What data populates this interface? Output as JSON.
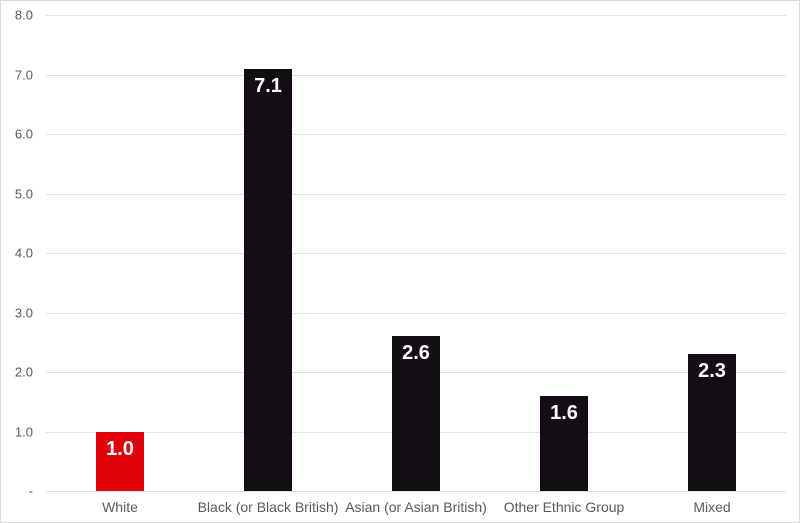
{
  "chart_data": {
    "type": "bar",
    "title": "",
    "xlabel": "",
    "ylabel": "",
    "categories": [
      "White",
      "Black (or Black British)",
      "Asian (or Asian British)",
      "Other Ethnic Group",
      "Mixed"
    ],
    "values": [
      1.0,
      7.1,
      2.6,
      1.6,
      2.3
    ],
    "value_labels": [
      "1.0",
      "7.1",
      "2.6",
      "1.6",
      "2.3"
    ],
    "bar_colors": [
      "#e00009",
      "#140d16",
      "#140d16",
      "#140d16",
      "#140d16"
    ],
    "highlight_color": "#e00009",
    "default_bar_color": "#140d16",
    "ylim": [
      0,
      8
    ],
    "y_ticks": [
      {
        "value": 8,
        "label": "8.0"
      },
      {
        "value": 7,
        "label": "7.0"
      },
      {
        "value": 6,
        "label": "6.0"
      },
      {
        "value": 5,
        "label": "5.0"
      },
      {
        "value": 4,
        "label": "4.0"
      },
      {
        "value": 3,
        "label": "3.0"
      },
      {
        "value": 2,
        "label": "2.0"
      },
      {
        "value": 1,
        "label": "1.0"
      },
      {
        "value": 0,
        "label": "-"
      }
    ],
    "grid": true,
    "legend": false,
    "legend_position": "none"
  },
  "colors": {
    "background": "#ffffff",
    "border": "#d9d9d9",
    "gridline": "#e2e2e2",
    "axis_text": "#595959",
    "value_label_text": "#ffffff"
  }
}
